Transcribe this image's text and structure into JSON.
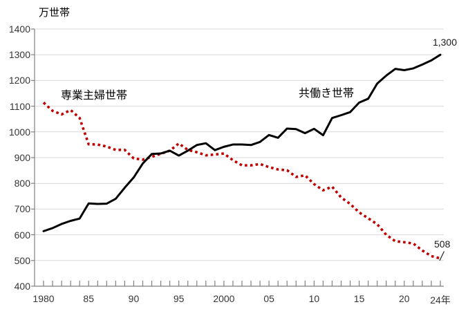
{
  "chart_data": {
    "type": "line",
    "title": "",
    "ylabel": "万世帯",
    "xlabel": "",
    "ylim": [
      400,
      1400
    ],
    "yticks": [
      400,
      500,
      600,
      700,
      800,
      900,
      1000,
      1100,
      1200,
      1300,
      1400
    ],
    "grid": "horizontal",
    "legend": "inline-annotations",
    "years": [
      1980,
      1981,
      1982,
      1983,
      1984,
      1985,
      1986,
      1987,
      1988,
      1989,
      1990,
      1991,
      1992,
      1993,
      1994,
      1995,
      1996,
      1997,
      1998,
      1999,
      2000,
      2001,
      2002,
      2003,
      2004,
      2005,
      2006,
      2007,
      2008,
      2009,
      2010,
      2011,
      2012,
      2013,
      2014,
      2015,
      2016,
      2017,
      2018,
      2019,
      2020,
      2021,
      2022,
      2023,
      2024
    ],
    "xtick_labels": [
      {
        "year": 1980,
        "label": "1980"
      },
      {
        "year": 1985,
        "label": "85"
      },
      {
        "year": 1990,
        "label": "90"
      },
      {
        "year": 1995,
        "label": "95"
      },
      {
        "year": 2000,
        "label": "2000"
      },
      {
        "year": 2005,
        "label": "05"
      },
      {
        "year": 2010,
        "label": "10"
      },
      {
        "year": 2015,
        "label": "15"
      },
      {
        "year": 2020,
        "label": "20"
      },
      {
        "year": 2024,
        "label": "24年"
      }
    ],
    "series": [
      {
        "name": "専業主婦世帯",
        "color": "#C00000",
        "style": "dotted",
        "values": [
          1114,
          1082,
          1068,
          1085,
          1054,
          952,
          951,
          943,
          930,
          930,
          897,
          892,
          903,
          915,
          927,
          955,
          930,
          921,
          909,
          912,
          916,
          890,
          870,
          870,
          875,
          863,
          854,
          851,
          825,
          831,
          797,
          773,
          787,
          745,
          720,
          687,
          664,
          641,
          600,
          575,
          571,
          566,
          539,
          517,
          508
        ]
      },
      {
        "name": "共働き世帯",
        "color": "#000000",
        "style": "solid",
        "values": [
          614,
          626,
          642,
          654,
          663,
          722,
          720,
          721,
          740,
          783,
          823,
          877,
          914,
          916,
          927,
          908,
          927,
          949,
          956,
          929,
          942,
          951,
          951,
          949,
          961,
          988,
          977,
          1013,
          1011,
          995,
          1012,
          987,
          1054,
          1065,
          1077,
          1114,
          1129,
          1188,
          1219,
          1245,
          1240,
          1247,
          1262,
          1278,
          1300
        ]
      }
    ],
    "end_labels": {
      "tomobataraki": "1,300",
      "sengyo": "508"
    },
    "colors": {
      "gridline": "#D9D9D9",
      "axis": "#7F7F7F",
      "tick_text": "#363636",
      "red_series": "#C00000",
      "black_series": "#000000"
    }
  },
  "annotations": {
    "unit_label": "万世帯"
  }
}
